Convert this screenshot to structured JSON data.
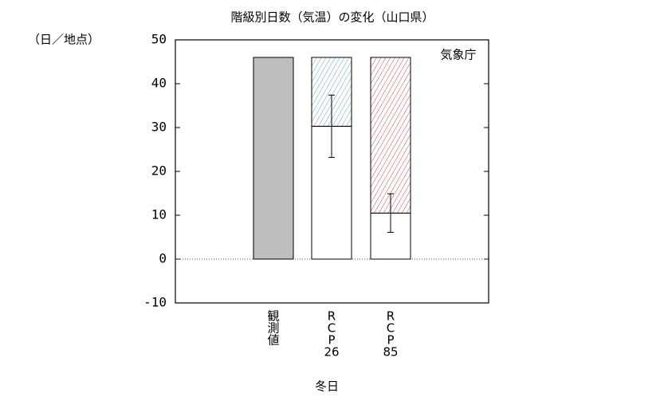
{
  "chart_data": {
    "type": "bar",
    "title": "階級別日数（気温）の変化（山口県）",
    "y_unit": "（日／地点）",
    "source": "気象庁",
    "x_label": "冬日",
    "categories": [
      [
        "観",
        "測",
        "値"
      ],
      [
        "R",
        "C",
        "P",
        "26"
      ],
      [
        "R",
        "C",
        "P",
        "85"
      ]
    ],
    "series": [
      {
        "color": "#bebebe",
        "values": [
          46,
          null,
          null
        ]
      },
      {
        "color": "#ffffff",
        "values": [
          null,
          30.3,
          10.5
        ],
        "errors": [
          null,
          7.1,
          4.4
        ]
      },
      {
        "colors": [
          null,
          "#6a9fc8",
          "#c0504d"
        ],
        "hatch": true,
        "values": [
          null,
          15.7,
          35.5
        ]
      }
    ],
    "ylim": [
      -10,
      50
    ],
    "yticks": [
      -10,
      0,
      10,
      20,
      30,
      40,
      50
    ]
  }
}
